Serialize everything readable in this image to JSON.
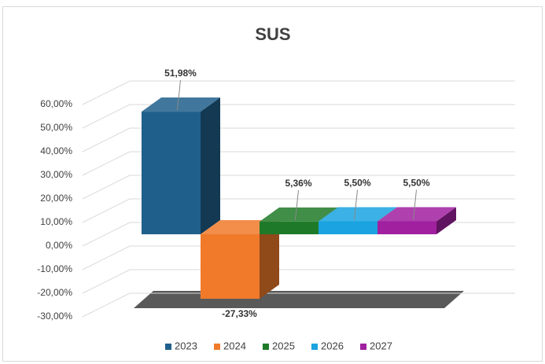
{
  "chart_data": {
    "type": "bar3d",
    "title": "SUS",
    "categories": [
      ""
    ],
    "series": [
      {
        "name": "2023",
        "color": "#1f5f8b",
        "values": [
          51.98
        ],
        "value_labels": [
          "51,98%"
        ]
      },
      {
        "name": "2024",
        "color": "#f07a2a",
        "values": [
          -27.33
        ],
        "value_labels": [
          "-27,33%"
        ]
      },
      {
        "name": "2025",
        "color": "#1e7a28",
        "values": [
          5.36
        ],
        "value_labels": [
          "5,36%"
        ]
      },
      {
        "name": "2026",
        "color": "#1aa3e0",
        "values": [
          5.5
        ],
        "value_labels": [
          "5,50%"
        ]
      },
      {
        "name": "2027",
        "color": "#a020a0",
        "values": [
          5.5
        ],
        "value_labels": [
          "5,50%"
        ]
      }
    ],
    "ylim": [
      -30,
      60
    ],
    "yticks": [
      {
        "value": -30,
        "label": "-30,00%"
      },
      {
        "value": -20,
        "label": "-20,00%"
      },
      {
        "value": -10,
        "label": "-10,00%"
      },
      {
        "value": 0,
        "label": "0,00%"
      },
      {
        "value": 10,
        "label": "10,00%"
      },
      {
        "value": 20,
        "label": "20,00%"
      },
      {
        "value": 30,
        "label": "30,00%"
      },
      {
        "value": 40,
        "label": "40,00%"
      },
      {
        "value": 50,
        "label": "50,00%"
      },
      {
        "value": 60,
        "label": "60,00%"
      }
    ],
    "grid": true,
    "legend": "bottom"
  }
}
